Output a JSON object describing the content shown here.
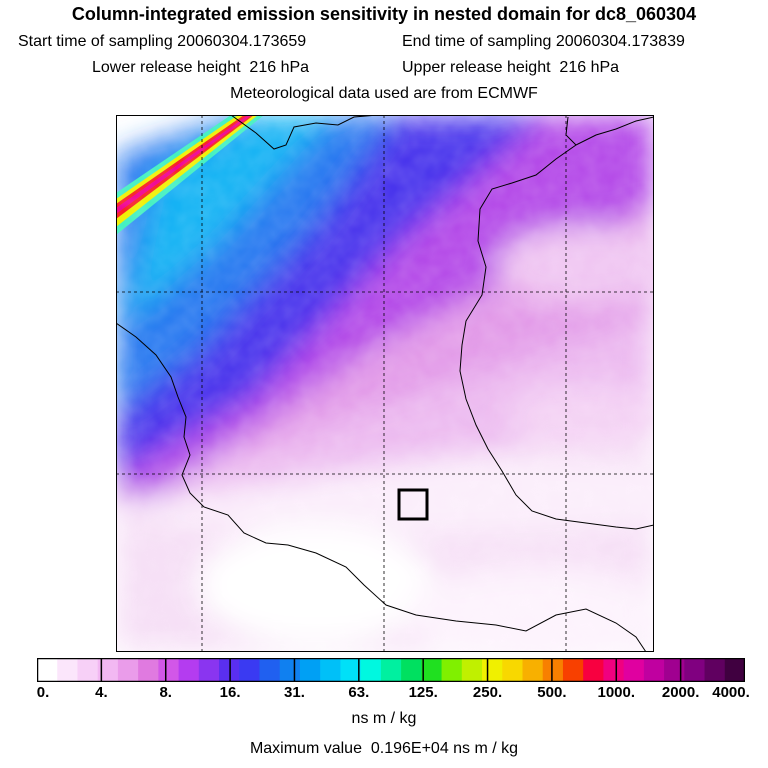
{
  "title": "Column-integrated emission sensitivity in nested domain for dc8_060304",
  "start_label": "Start time of sampling 20060304.173659",
  "end_label": "End time of sampling 20060304.173839",
  "lower_label": "Lower release height  216 hPa",
  "upper_label": "Upper release height  216 hPa",
  "met_label": "Meteorological data used are from ECMWF",
  "colorbar": {
    "tick_labels": [
      "0.",
      "4.",
      "8.",
      "16.",
      "31.",
      "63.",
      "125.",
      "250.",
      "500.",
      "1000.",
      "2000.",
      "4000."
    ],
    "colors": [
      "#ffffff",
      "#fbe6fb",
      "#f7d0f7",
      "#f2b8f2",
      "#ea9cea",
      "#e07ae0",
      "#d257e8",
      "#b43cf0",
      "#8a35f0",
      "#5a2ff0",
      "#3a3af2",
      "#2060f0",
      "#1080f0",
      "#00a0f4",
      "#00c0f8",
      "#00e0f8",
      "#00f8e0",
      "#00f0a0",
      "#00e060",
      "#20e020",
      "#80f000",
      "#c0f000",
      "#f0f000",
      "#f8d800",
      "#f8b000",
      "#f88000",
      "#f84000",
      "#f80040",
      "#f00080",
      "#e000a0",
      "#c000a0",
      "#a00090",
      "#800080",
      "#600060",
      "#400040"
    ],
    "units": "ns m / kg"
  },
  "max_value_label": "Maximum value  0.196E+04 ns m / kg"
}
